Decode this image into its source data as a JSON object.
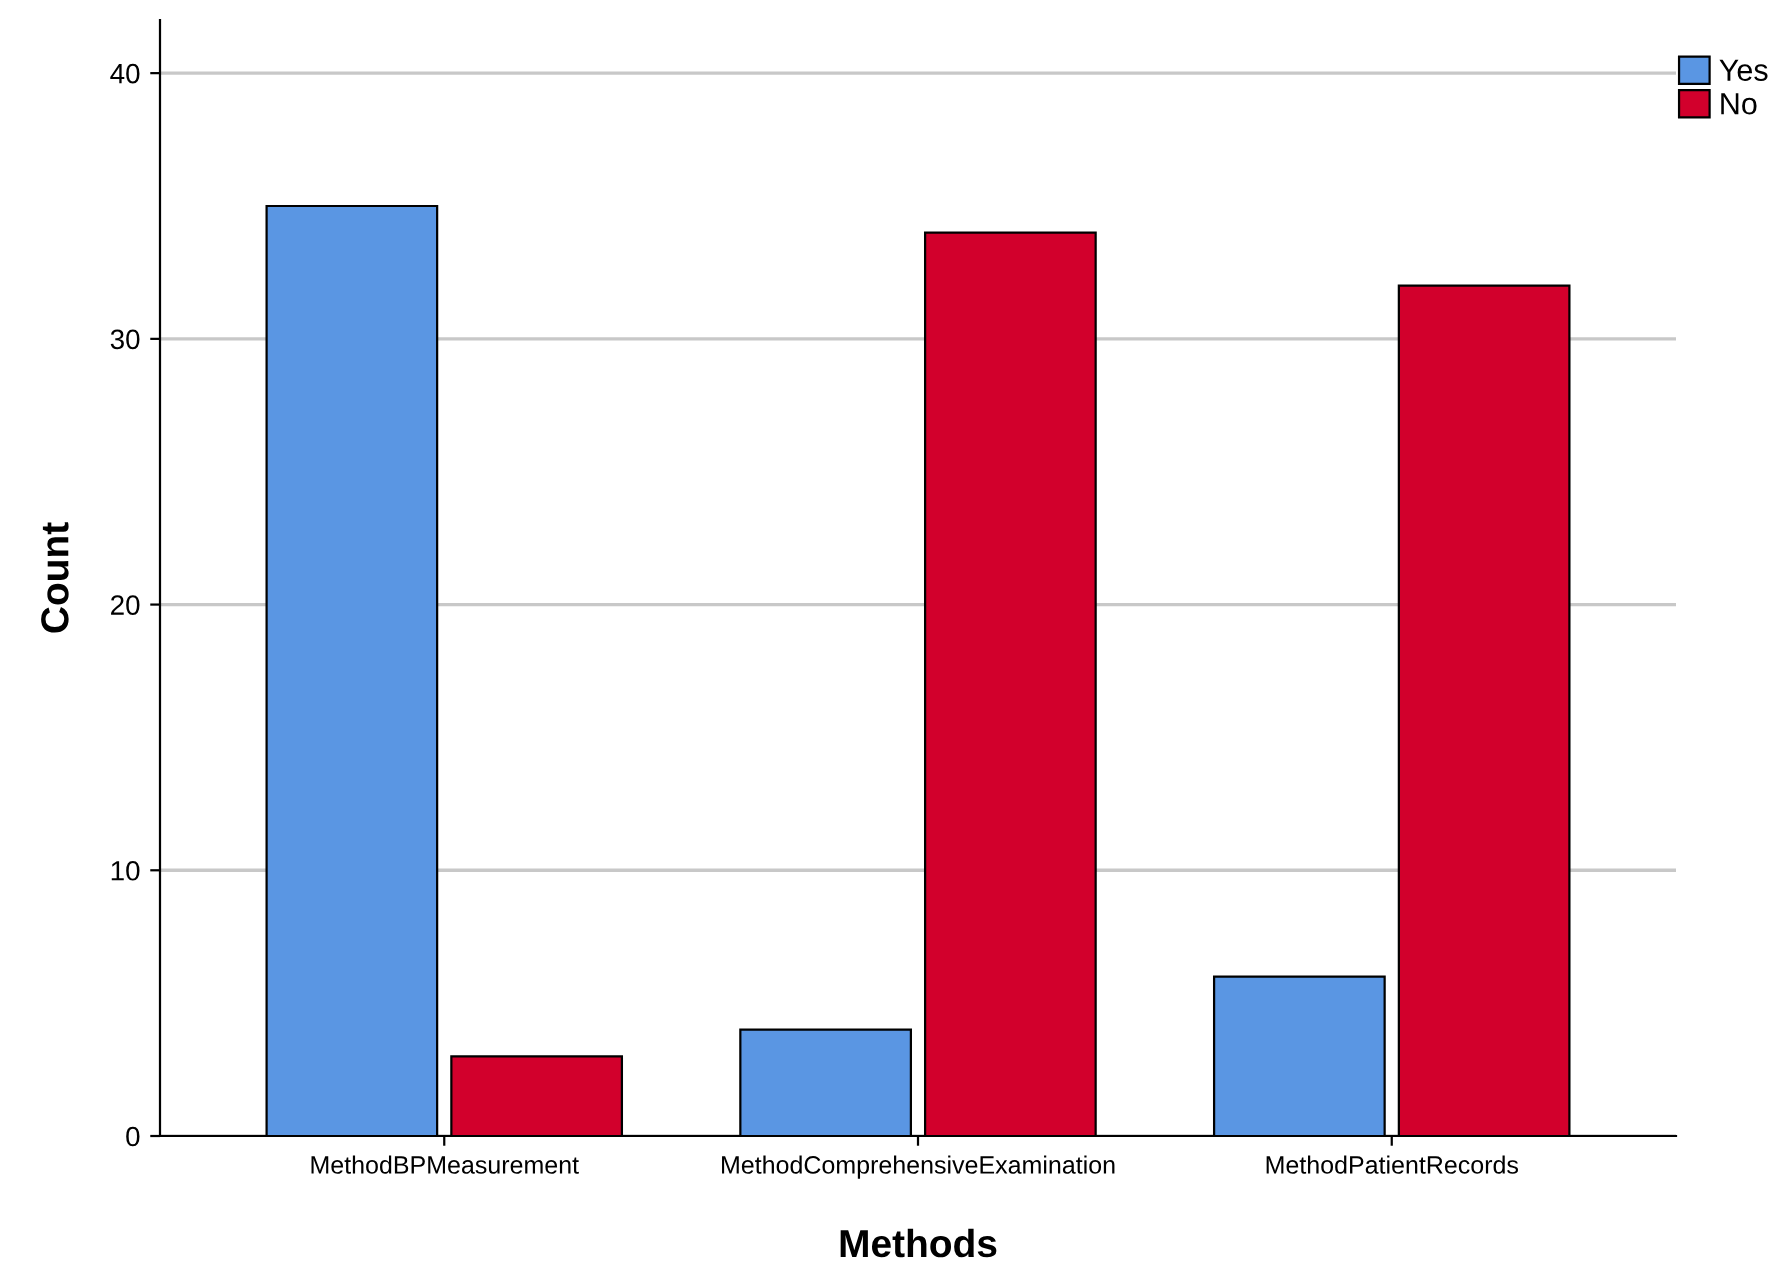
{
  "chart_data": {
    "type": "bar",
    "xlabel": "Methods",
    "ylabel": "Count",
    "categories": [
      "MethodBPMeasurement",
      "MethodComprehensiveExamination",
      "MethodPatientRecords"
    ],
    "series": [
      {
        "name": "Yes",
        "color": "#5a96e3",
        "values": [
          35,
          4,
          6
        ]
      },
      {
        "name": "No",
        "color": "#d2002c",
        "values": [
          3,
          34,
          32
        ]
      }
    ],
    "ylim": [
      0,
      42
    ],
    "yticks": [
      0,
      10,
      20,
      30,
      40
    ],
    "grid": "y",
    "legend": "top right"
  }
}
